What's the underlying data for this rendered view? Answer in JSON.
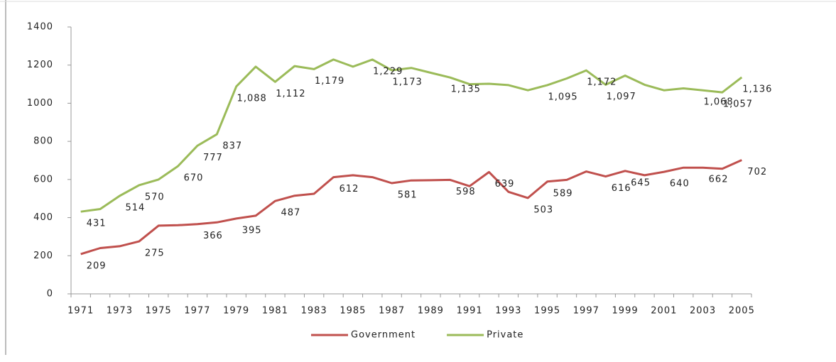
{
  "chart_data": {
    "type": "line",
    "categories": [
      "1971",
      null,
      "1973",
      null,
      "1975",
      null,
      "1977",
      null,
      "1979",
      null,
      "1981",
      null,
      "1983",
      null,
      "1985",
      null,
      "1987",
      null,
      "1989",
      null,
      "1991",
      null,
      "1993",
      null,
      "1995",
      null,
      "1997",
      null,
      "1999",
      null,
      "2001",
      null,
      "2003",
      null,
      "2005"
    ],
    "series": [
      {
        "name": "Government",
        "color": "#c0504d",
        "values": [
          209,
          240,
          250,
          275,
          358,
          360,
          366,
          375,
          395,
          410,
          487,
          515,
          525,
          612,
          622,
          612,
          581,
          595,
          596,
          598,
          565,
          639,
          535,
          503,
          589,
          598,
          642,
          616,
          645,
          622,
          640,
          662,
          662,
          656,
          702
        ],
        "value_labels": [
          "209",
          null,
          null,
          "275",
          null,
          null,
          "366",
          null,
          "395",
          null,
          "487",
          null,
          null,
          "612",
          null,
          null,
          "581",
          null,
          null,
          "598",
          null,
          "639",
          null,
          "503",
          "589",
          null,
          null,
          "616",
          "645",
          null,
          "640",
          null,
          "662",
          null,
          "702"
        ]
      },
      {
        "name": "Private",
        "color": "#9bbb59",
        "values": [
          431,
          445,
          514,
          570,
          600,
          670,
          777,
          837,
          1088,
          1192,
          1112,
          1195,
          1179,
          1229,
          1192,
          1229,
          1173,
          1185,
          1160,
          1135,
          1100,
          1102,
          1095,
          1068,
          1095,
          1130,
          1172,
          1097,
          1145,
          1097,
          1068,
          1078,
          1068,
          1057,
          1136
        ],
        "value_labels": [
          "431",
          null,
          "514",
          "570",
          null,
          "670",
          "777",
          "837",
          "1,088",
          null,
          "1,112",
          null,
          "1,179",
          null,
          null,
          "1,229",
          "1,173",
          null,
          null,
          "1,135",
          null,
          null,
          null,
          null,
          "1,095",
          null,
          "1,172",
          "1,097",
          null,
          null,
          null,
          null,
          "1,068",
          "1,057",
          "1,136"
        ]
      }
    ],
    "ylim": [
      0,
      1400
    ],
    "yticks": [
      0,
      200,
      400,
      600,
      800,
      1000,
      1200,
      1400
    ],
    "grid": false,
    "legend": "bottom"
  }
}
